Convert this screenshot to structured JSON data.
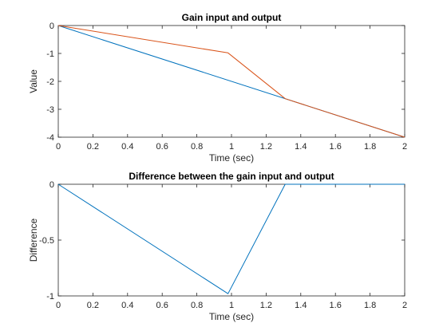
{
  "chart_data": [
    {
      "type": "line",
      "title": "Gain input and output",
      "xlabel": "Time (sec)",
      "ylabel": "Value",
      "xlim": [
        0,
        2
      ],
      "ylim": [
        -4,
        0
      ],
      "xticks": [
        "0",
        "0.2",
        "0.4",
        "0.6",
        "0.8",
        "1",
        "1.2",
        "1.4",
        "1.6",
        "1.8",
        "2"
      ],
      "yticks": [
        "0",
        "-1",
        "-2",
        "-3",
        "-4"
      ],
      "grid": false,
      "series": [
        {
          "color": "#0072BD",
          "x": [
            0,
            2
          ],
          "y": [
            0,
            -4
          ]
        },
        {
          "color": "#D95319",
          "x": [
            0,
            0.98,
            1.31,
            2
          ],
          "y": [
            0,
            -0.98,
            -2.62,
            -4
          ]
        }
      ]
    },
    {
      "type": "line",
      "title": "Difference between the gain input and output",
      "xlabel": "Time (sec)",
      "ylabel": "Difference",
      "xlim": [
        0,
        2
      ],
      "ylim": [
        -1,
        0
      ],
      "xticks": [
        "0",
        "0.2",
        "0.4",
        "0.6",
        "0.8",
        "1",
        "1.2",
        "1.4",
        "1.6",
        "1.8",
        "2"
      ],
      "yticks": [
        "0",
        "-0.5",
        "-1"
      ],
      "grid": false,
      "series": [
        {
          "color": "#0072BD",
          "x": [
            0,
            0.98,
            1.31,
            2
          ],
          "y": [
            0,
            -0.98,
            0,
            0
          ]
        }
      ]
    }
  ]
}
